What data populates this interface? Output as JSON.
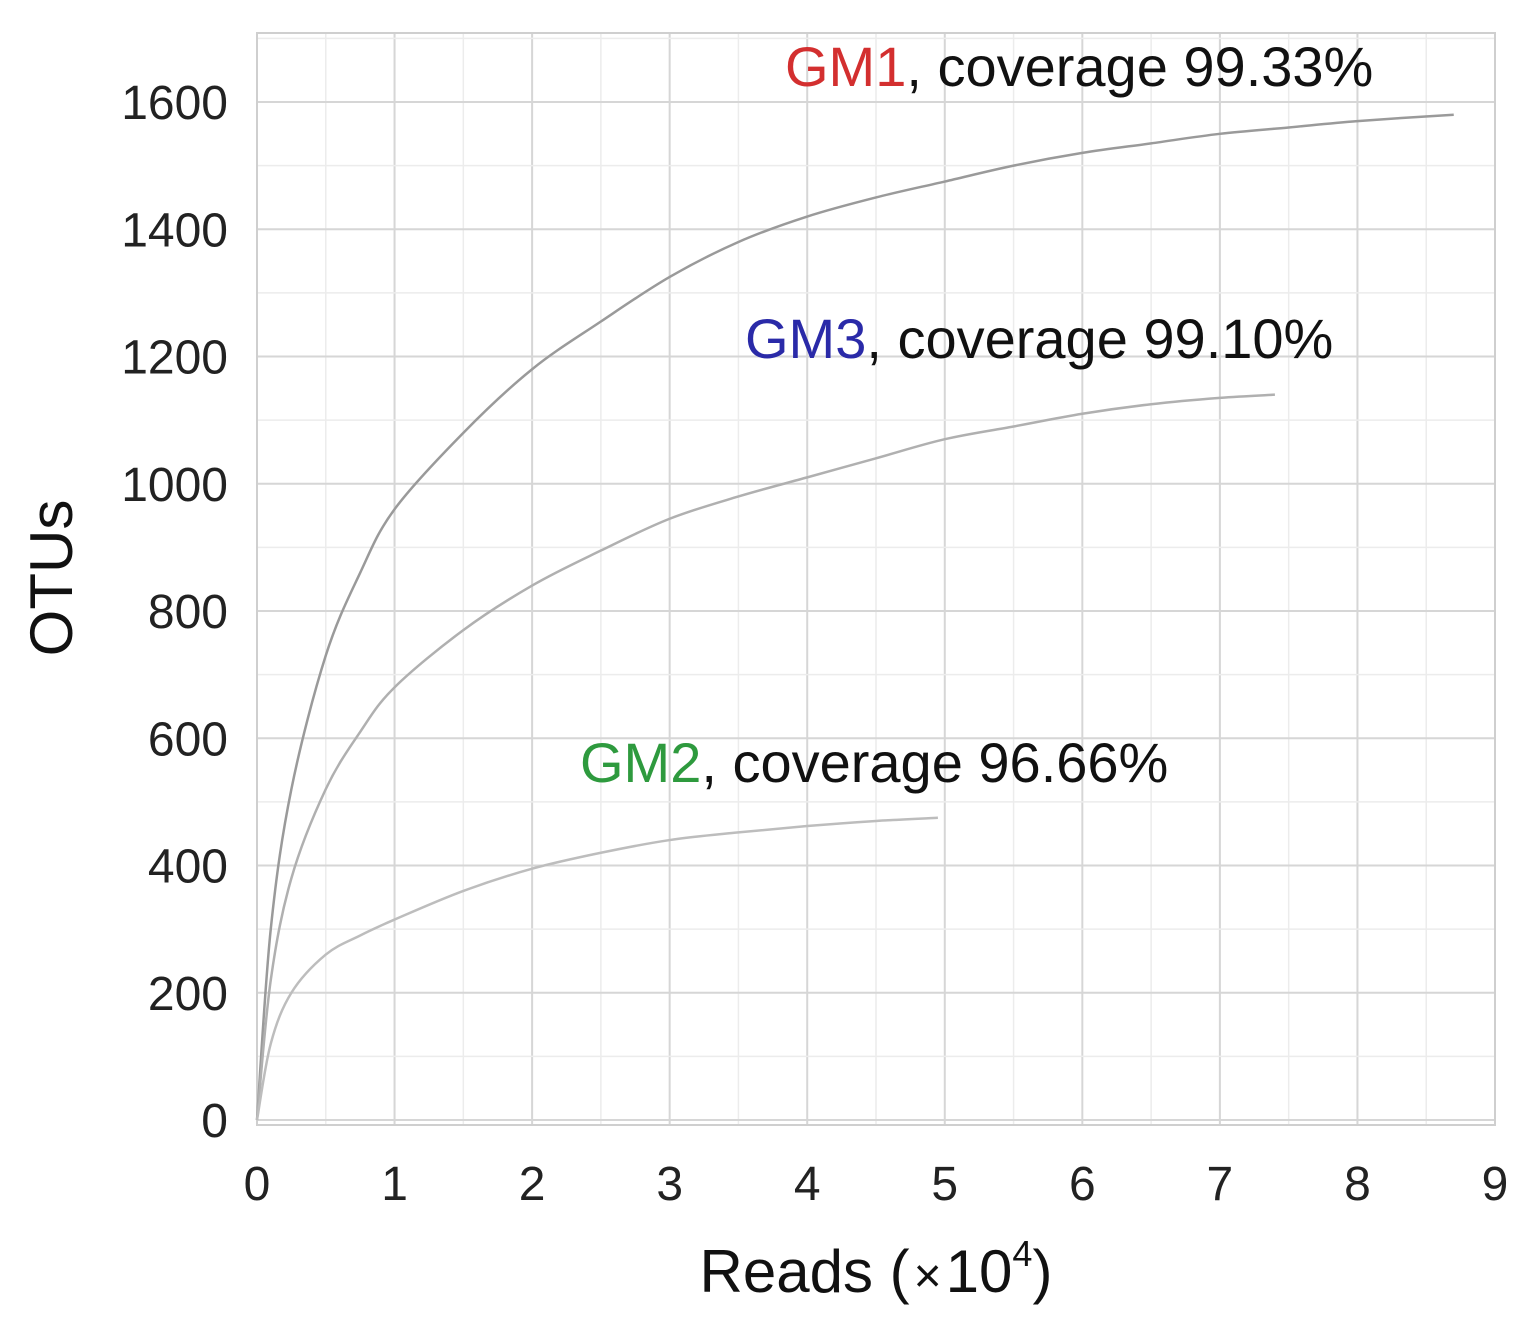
{
  "chart_data": {
    "type": "line",
    "title": "",
    "xlabel": "Reads (",
    "xlabel_multiplier": "×",
    "xlabel_base": "10",
    "xlabel_exponent": "4",
    "xlabel_close": ")",
    "ylabel": "OTUs",
    "xlim": [
      0,
      9
    ],
    "ylim": [
      0,
      1700
    ],
    "xticks": [
      0,
      1,
      2,
      3,
      4,
      5,
      6,
      7,
      8,
      9
    ],
    "yticks": [
      0,
      200,
      400,
      600,
      800,
      1000,
      1200,
      1400,
      1600
    ],
    "grid": true,
    "series": [
      {
        "name": "GM1",
        "coverage_text": ", coverage  99.33%",
        "name_color": "#d32f2f",
        "line_color": "#9a9a9a",
        "x": [
          0,
          0.1,
          0.25,
          0.5,
          0.75,
          1,
          1.5,
          2,
          2.5,
          3,
          3.5,
          4,
          4.5,
          5,
          5.5,
          6,
          6.5,
          7,
          7.5,
          8,
          8.7
        ],
        "y": [
          0,
          300,
          520,
          730,
          860,
          960,
          1080,
          1180,
          1255,
          1325,
          1380,
          1420,
          1450,
          1475,
          1500,
          1520,
          1535,
          1550,
          1560,
          1570,
          1580
        ]
      },
      {
        "name": "GM3",
        "coverage_text": ", coverage  99.10%",
        "name_color": "#2a2aa8",
        "line_color": "#b0b0b0",
        "x": [
          0,
          0.1,
          0.25,
          0.5,
          0.75,
          1,
          1.5,
          2,
          2.5,
          3,
          3.5,
          4,
          4.5,
          5,
          5.5,
          6,
          6.5,
          7,
          7.4
        ],
        "y": [
          0,
          220,
          380,
          520,
          610,
          680,
          770,
          840,
          895,
          945,
          980,
          1010,
          1040,
          1070,
          1090,
          1110,
          1125,
          1135,
          1140
        ]
      },
      {
        "name": "GM2",
        "coverage_text": ", coverage  96.66%",
        "name_color": "#2e9a3e",
        "line_color": "#bdbdbd",
        "x": [
          0,
          0.1,
          0.25,
          0.5,
          0.75,
          1,
          1.5,
          2,
          2.5,
          3,
          3.5,
          4,
          4.5,
          4.95
        ],
        "y": [
          0,
          120,
          200,
          260,
          290,
          315,
          360,
          395,
          420,
          440,
          452,
          462,
          470,
          475
        ]
      }
    ]
  }
}
